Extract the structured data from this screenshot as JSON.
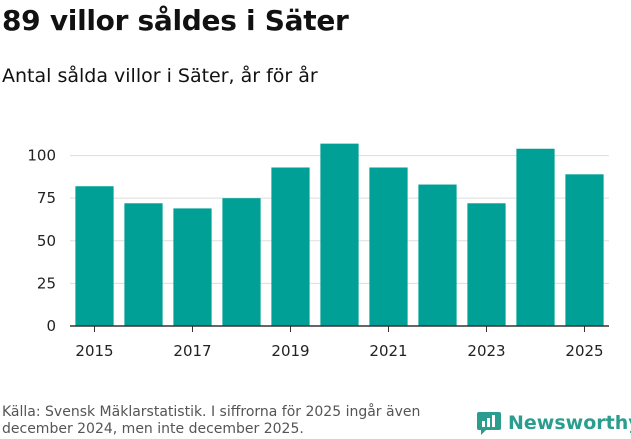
{
  "header": {
    "title": "89 villor såldes i Säter",
    "subtitle": "Antal sålda villor i Säter, år för år"
  },
  "footer": {
    "source": "Källa: Svensk Mäklarstatistik. I siffrorna för 2025 ingår även december 2024, men inte december 2025.",
    "brand": "Newsworthy",
    "brand_icon": "newsworthy-logo-icon"
  },
  "colors": {
    "bar": "#00a096",
    "grid": "#dddddd",
    "axis": "#333333",
    "brand": "#2a9d8f"
  },
  "chart_data": {
    "type": "bar",
    "title": "89 villor såldes i Säter",
    "subtitle": "Antal sålda villor i Säter, år för år",
    "categories": [
      "2015",
      "2016",
      "2017",
      "2018",
      "2019",
      "2020",
      "2021",
      "2022",
      "2023",
      "2024",
      "2025"
    ],
    "values": [
      82,
      72,
      69,
      75,
      93,
      107,
      93,
      83,
      72,
      104,
      89
    ],
    "x_tick_labels": [
      "2015",
      "2017",
      "2019",
      "2021",
      "2023",
      "2025"
    ],
    "y_ticks": [
      0,
      25,
      50,
      75,
      100
    ],
    "ylim": [
      0,
      115
    ],
    "xlabel": "",
    "ylabel": "",
    "grid": true,
    "legend": "none"
  }
}
